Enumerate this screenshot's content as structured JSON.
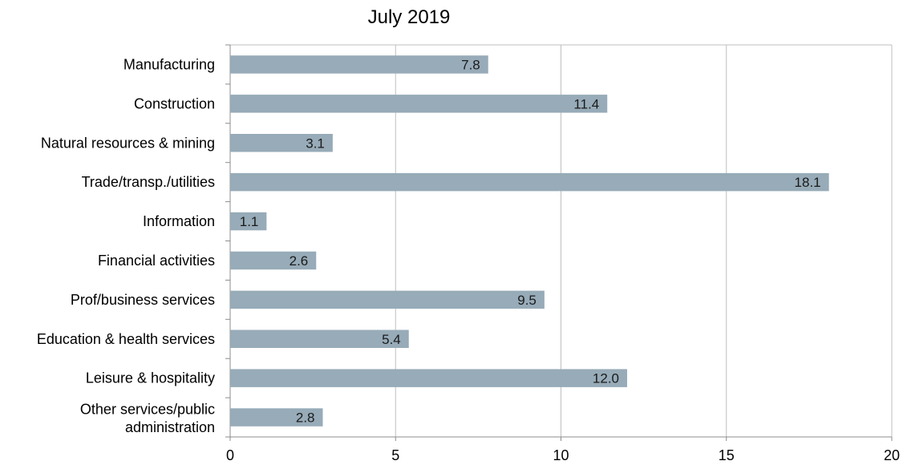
{
  "chart_data": {
    "type": "bar",
    "orientation": "horizontal",
    "title": "July 2019",
    "xlabel": "",
    "ylabel": "",
    "categories": [
      "Manufacturing",
      "Construction",
      "Natural resources & mining",
      "Trade/transp./utilities",
      "Information",
      "Financial activities",
      "Prof/business services",
      "Education & health services",
      "Leisure & hospitality",
      [
        "Other services/public",
        "administration"
      ]
    ],
    "values": [
      7.8,
      11.4,
      3.1,
      18.1,
      1.1,
      2.6,
      9.5,
      5.4,
      12.0,
      2.8
    ],
    "data_labels": [
      "7.8",
      "11.4",
      "3.1",
      "18.1",
      "1.1",
      "2.6",
      "9.5",
      "5.4",
      "12.0",
      "2.8"
    ],
    "xlim": [
      0,
      20
    ],
    "xticks": [
      0,
      5,
      10,
      15,
      20
    ],
    "xtick_labels": [
      "0",
      "5",
      "10",
      "15",
      "20"
    ],
    "grid": "vertical major gridlines",
    "legend": "none",
    "colors": {
      "bar": "#97abb8",
      "grid": "#bfbfbf",
      "axis": "#8c8c8c",
      "text": "#000000"
    }
  }
}
